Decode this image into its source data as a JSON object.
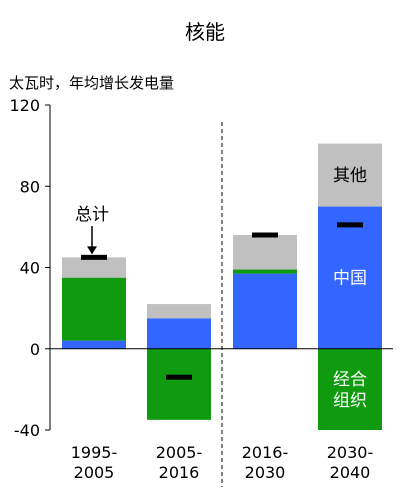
{
  "chart_data": {
    "type": "bar",
    "stacked": true,
    "title": "核能",
    "ylabel": "太瓦时，年均增长发电量",
    "ylim": [
      -40,
      120
    ],
    "yticks": [
      -40,
      0,
      40,
      80,
      120
    ],
    "categories": [
      {
        "line1": "1995-",
        "line2": "2005"
      },
      {
        "line1": "2005-",
        "line2": "2016"
      },
      {
        "line1": "2016-",
        "line2": "2030"
      },
      {
        "line1": "2030-",
        "line2": "2040"
      }
    ],
    "series": [
      {
        "key": "china",
        "label": "中国",
        "color": "#3366ff",
        "label_color": "#ffffff",
        "label_at": 3,
        "values": [
          4,
          15,
          37,
          70
        ]
      },
      {
        "key": "oecd",
        "label": "经合\n组织",
        "color": "#0f9a10",
        "label_color": "#ffffff",
        "label_at": 3,
        "values": [
          31,
          -35,
          2,
          -40
        ]
      },
      {
        "key": "other",
        "label": "其他",
        "color": "#c0c0c0",
        "label_color": "#000000",
        "label_at": 3,
        "values": [
          10,
          7,
          17,
          31
        ]
      }
    ],
    "totals": [
      45,
      -14,
      56,
      61
    ],
    "total_label": "总计",
    "divider_after_category": 1,
    "grid": false
  }
}
